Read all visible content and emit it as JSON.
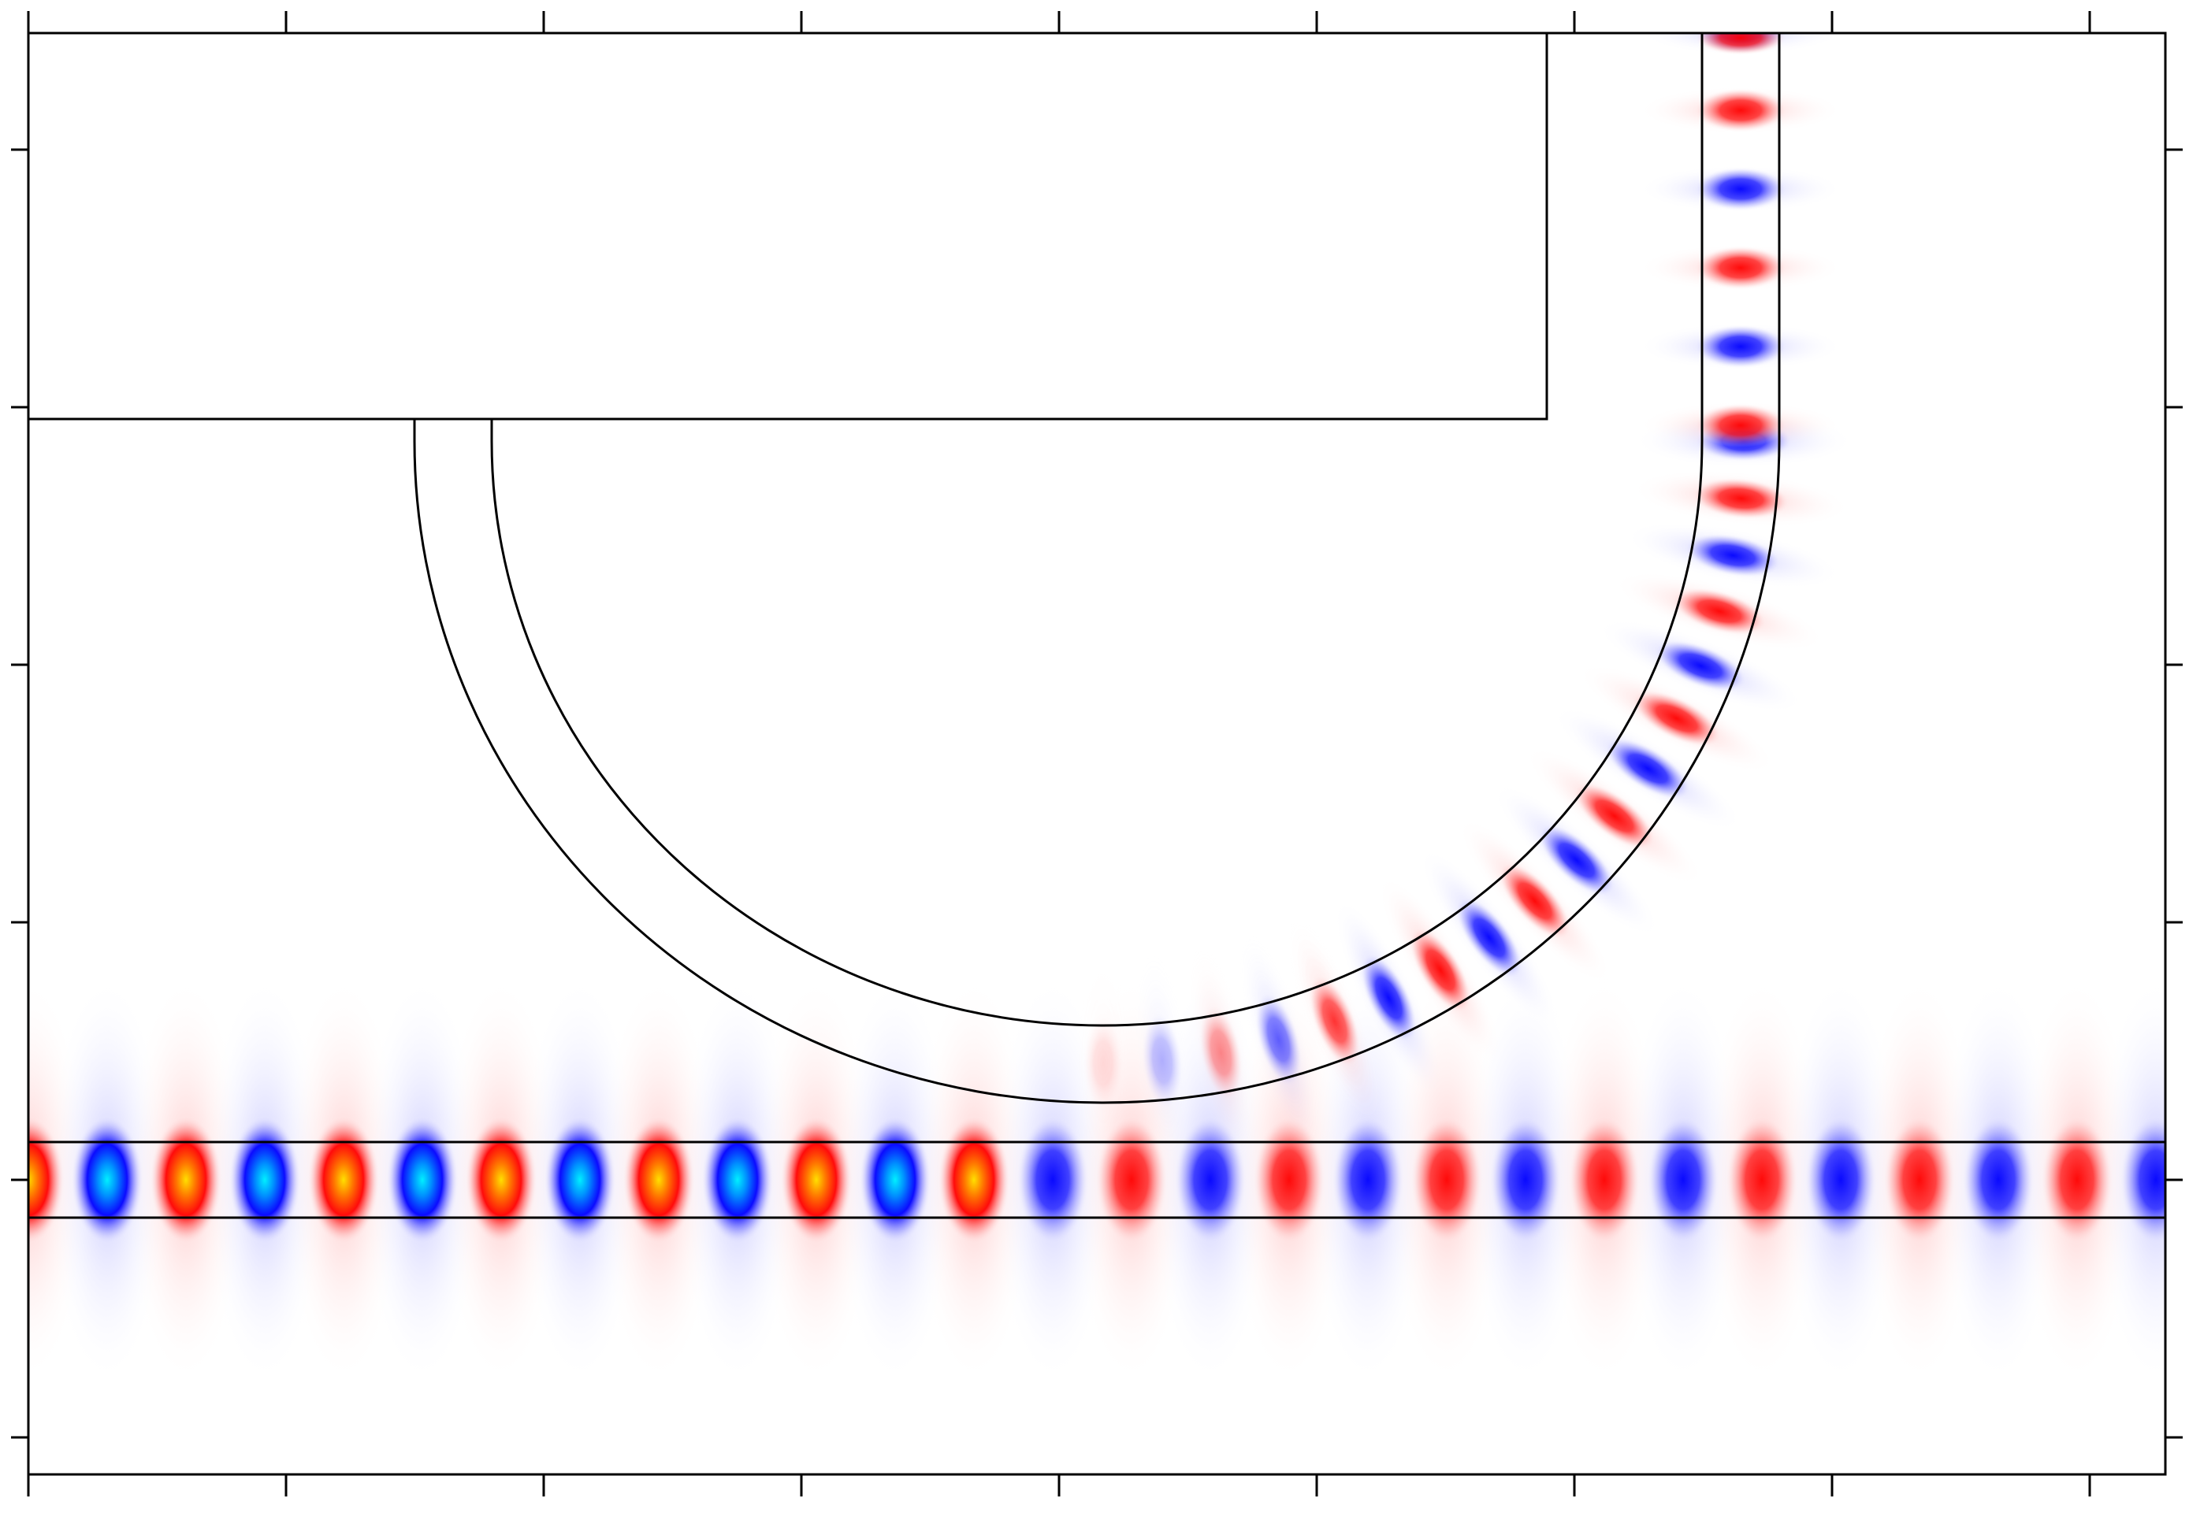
{
  "figure": {
    "description_visible_text": "",
    "colors": {
      "positive_field": "#ff0000",
      "positive_peak": "#ffd800",
      "negative_field": "#0000ff",
      "negative_peak": "#00e5ff",
      "background": "#ffffff",
      "outline": "#000000"
    }
  },
  "axes": {
    "x_ticks": 9,
    "y_ticks": 6,
    "tick_labels_shown": false
  },
  "field": {
    "bus_waveguide_lobes": 28,
    "bend_waveguide_lobes": 18,
    "vertical_waveguide_lobes": 6
  }
}
